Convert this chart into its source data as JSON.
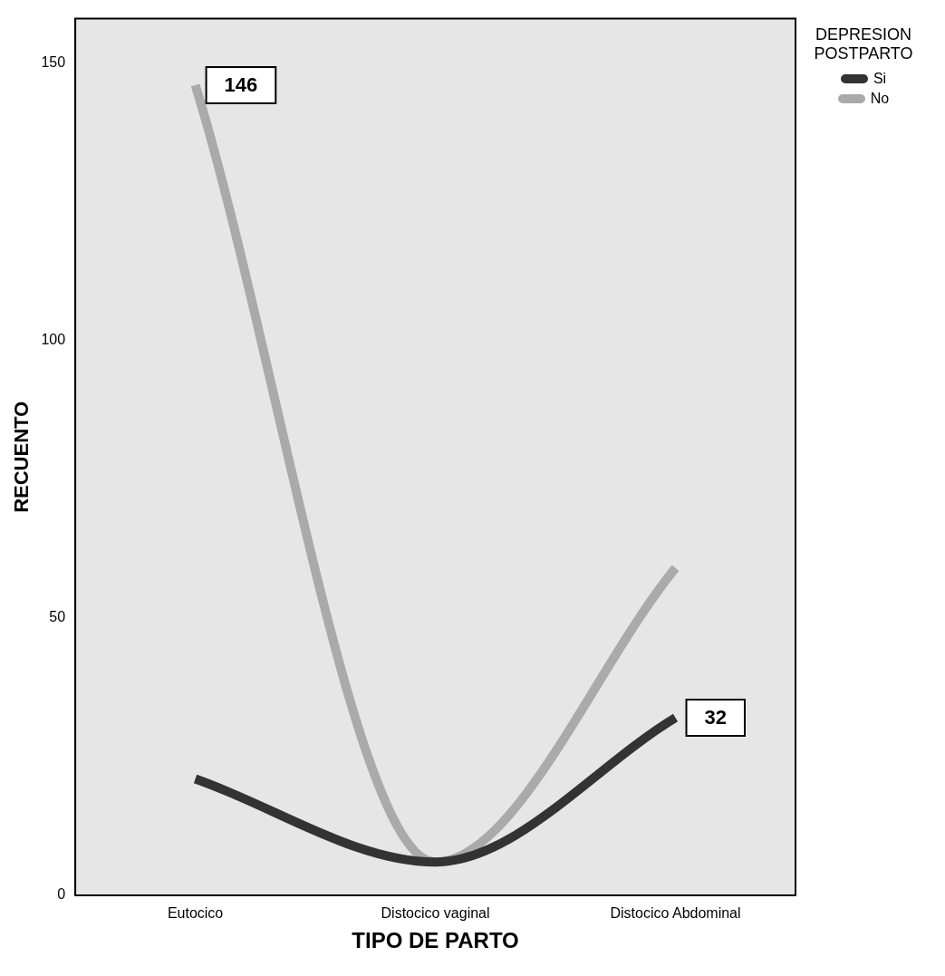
{
  "chart_data": {
    "type": "line",
    "xlabel": "TIPO DE PARTO",
    "ylabel": "RECUENTO",
    "legend_title": "DEPRESION POSTPARTO",
    "categories": [
      "Eutocico",
      "Distocico vaginal",
      "Distocico Abdominal"
    ],
    "series": [
      {
        "name": "Si",
        "color": "#333333",
        "values": [
          21,
          6,
          32
        ],
        "value_labels": [
          null,
          null,
          "32"
        ]
      },
      {
        "name": "No",
        "color": "#aaaaaa",
        "values": [
          146,
          6,
          59
        ],
        "value_labels": [
          "146",
          null,
          null
        ]
      }
    ],
    "ylim": [
      0,
      158
    ],
    "yticks": [
      0,
      50,
      100,
      150
    ],
    "grid": false,
    "legend": "top right",
    "marker": "none",
    "line_style": "solid"
  }
}
